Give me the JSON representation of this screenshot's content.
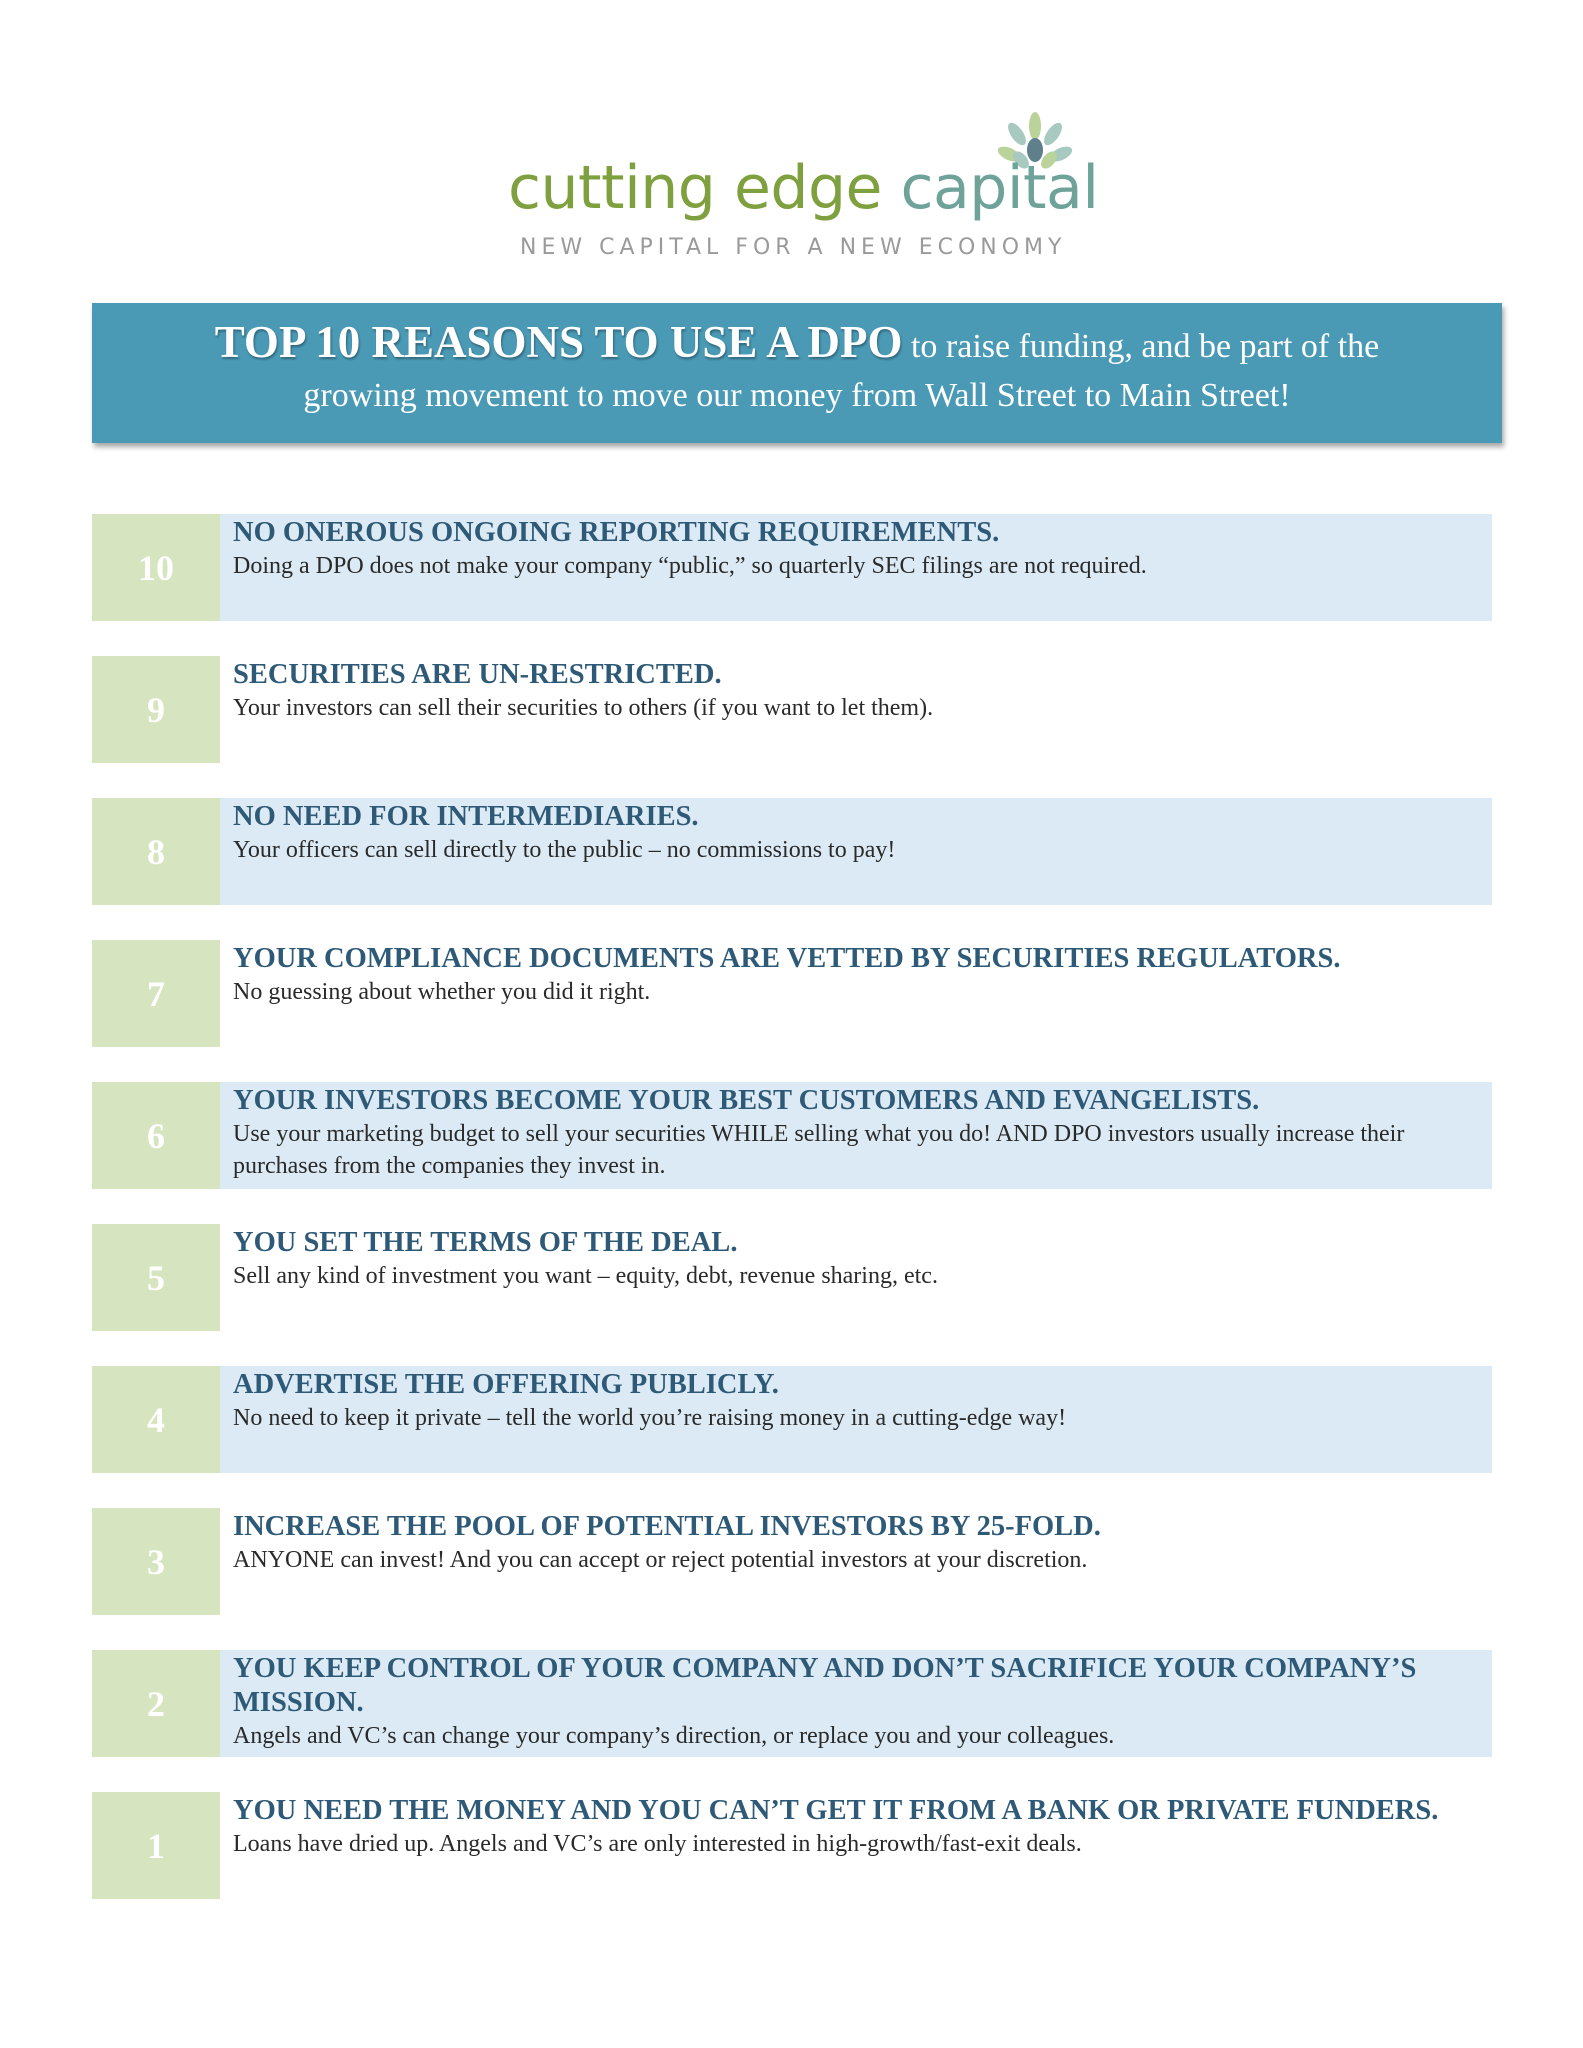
{
  "logo": {
    "name_part1": "cutting",
    "name_part2": "edge",
    "name_part3": "capital",
    "tagline": "NEW CAPITAL FOR A NEW ECONOMY",
    "icon": "leaf-cluster-icon"
  },
  "banner": {
    "title": "TOP 10 REASONS TO USE A DPO",
    "line1_rest": "to raise funding, and be part of the",
    "line2": "growing movement to move our money from Wall Street to Main Street!"
  },
  "reasons": [
    {
      "number": "10",
      "title": "NO ONEROUS ONGOING REPORTING REQUIREMENTS.",
      "text": "Doing a DPO does not make your company “public,” so quarterly SEC filings are not required."
    },
    {
      "number": "9",
      "title": "SECURITIES ARE UN-RESTRICTED.",
      "text": "Your investors can sell their securities to others (if you want to let them)."
    },
    {
      "number": "8",
      "title": "NO NEED FOR INTERMEDIARIES.",
      "text": "Your officers can sell directly to the public – no commissions to pay!"
    },
    {
      "number": "7",
      "title": "YOUR COMPLIANCE DOCUMENTS ARE VETTED BY SECURITIES REGULATORS.",
      "text": "No guessing about whether you did it right."
    },
    {
      "number": "6",
      "title": "YOUR INVESTORS BECOME YOUR BEST CUSTOMERS AND EVANGELISTS.",
      "text": "Use your marketing budget to sell your securities WHILE selling what you do!  AND DPO investors usually increase their purchases from the companies they invest in."
    },
    {
      "number": "5",
      "title": "YOU SET THE TERMS OF THE DEAL.",
      "text": "Sell any kind of investment you want – equity, debt, revenue sharing, etc."
    },
    {
      "number": "4",
      "title": "ADVERTISE THE OFFERING PUBLICLY.",
      "text": "No need to keep it private – tell the world you’re raising money in a cutting-edge way!"
    },
    {
      "number": "3",
      "title": "INCREASE THE POOL OF POTENTIAL INVESTORS BY 25-FOLD.",
      "text": "ANYONE can invest!  And you can accept or reject potential investors at your discretion."
    },
    {
      "number": "2",
      "title": "YOU KEEP CONTROL OF YOUR COMPANY AND DON’T SACRIFICE YOUR COMPANY’S MISSION.",
      "text": "Angels and VC’s can change your company’s direction, or replace you and your colleagues."
    },
    {
      "number": "1",
      "title": "YOU NEED THE MONEY AND YOU CAN’T GET IT FROM A BANK OR PRIVATE FUNDERS.",
      "text": "Loans have dried up.  Angels and VC’s are only interested in high-growth/fast-exit deals."
    }
  ],
  "colors": {
    "banner": "#4a9ab6",
    "number_box": "#d6e5c0",
    "row_shade": "#dbeaf4",
    "title_text": "#2f5a77",
    "logo_green": "#7fa03f",
    "logo_teal": "#6fa39a"
  }
}
